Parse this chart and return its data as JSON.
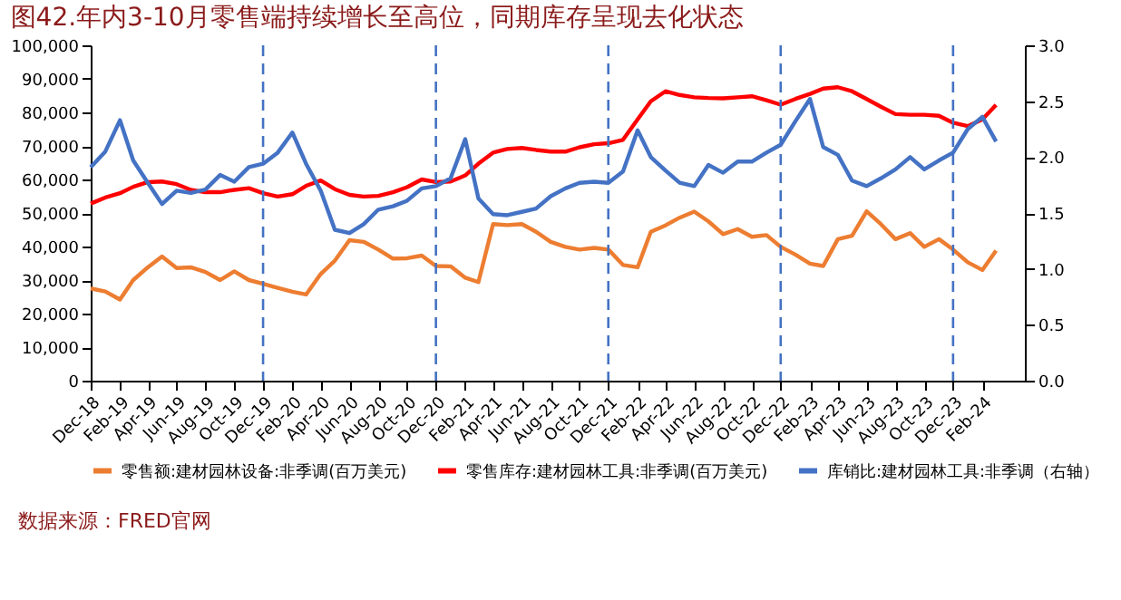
{
  "chart_data": {
    "type": "line",
    "title": "图42.年内3-10月零售端持续增长至高位，同期库存呈现去化状态",
    "annotations": [
      "数据来源：FRED官网"
    ],
    "x": [
      "2018-12",
      "2019-01",
      "2019-02",
      "2019-03",
      "2019-04",
      "2019-05",
      "2019-06",
      "2019-07",
      "2019-08",
      "2019-09",
      "2019-10",
      "2019-11",
      "2019-12",
      "2020-01",
      "2020-02",
      "2020-03",
      "2020-04",
      "2020-05",
      "2020-06",
      "2020-07",
      "2020-08",
      "2020-09",
      "2020-10",
      "2020-11",
      "2020-12",
      "2021-01",
      "2021-02",
      "2021-03",
      "2021-04",
      "2021-05",
      "2021-06",
      "2021-07",
      "2021-08",
      "2021-09",
      "2021-10",
      "2021-11",
      "2021-12",
      "2022-01",
      "2022-02",
      "2022-03",
      "2022-04",
      "2022-05",
      "2022-06",
      "2022-07",
      "2022-08",
      "2022-09",
      "2022-10",
      "2022-11",
      "2022-12",
      "2023-01",
      "2023-02",
      "2023-03",
      "2023-04",
      "2023-05",
      "2023-06",
      "2023-07",
      "2023-08",
      "2023-09",
      "2023-10",
      "2023-11",
      "2023-12",
      "2024-01",
      "2024-02",
      "2024-03"
    ],
    "series": [
      {
        "name": "零售额:建材园林设备:非季调(百万美元)",
        "color": "#ed7d31",
        "values": [
          27500,
          26600,
          24200,
          30000,
          33800,
          37000,
          33600,
          33800,
          32400,
          30000,
          32600,
          30000,
          28900,
          27700,
          26500,
          25700,
          31800,
          35800,
          41900,
          41400,
          39100,
          36400,
          36500,
          37300,
          34200,
          34100,
          30700,
          29400,
          46700,
          46400,
          46700,
          44400,
          41400,
          39900,
          39100,
          39600,
          39100,
          34500,
          33800,
          44400,
          46300,
          48600,
          50400,
          47500,
          43700,
          45200,
          42900,
          43400,
          39900,
          37600,
          34900,
          34200,
          42200,
          43200,
          50500,
          46700,
          42200,
          44000,
          39900,
          42200,
          39100,
          35300,
          33000,
          38800
        ]
      },
      {
        "name": "零售库存:建材园林工具:非季调(百万美元)",
        "color": "#ff0000",
        "values": [
          52800,
          54600,
          55900,
          57800,
          59200,
          59400,
          58600,
          56900,
          56200,
          56200,
          56900,
          57400,
          55900,
          54900,
          55600,
          58100,
          59700,
          57100,
          55400,
          54900,
          55100,
          56200,
          57700,
          60000,
          59200,
          59400,
          61200,
          64700,
          68000,
          69100,
          69400,
          68800,
          68300,
          68300,
          69600,
          70500,
          70800,
          71800,
          77900,
          83300,
          86300,
          85200,
          84500,
          84300,
          84200,
          84500,
          84800,
          83600,
          82300,
          84000,
          85500,
          87100,
          87500,
          86300,
          84000,
          81700,
          79500,
          79300,
          79300,
          79000,
          76900,
          75900,
          77900,
          82200
        ]
      },
      {
        "name": "库销比:建材园林工具:非季调（右轴）",
        "color": "#4472c4",
        "axis": "y2",
        "values": [
          1.91,
          2.05,
          2.33,
          1.97,
          1.77,
          1.58,
          1.7,
          1.68,
          1.71,
          1.84,
          1.78,
          1.91,
          1.94,
          2.04,
          2.22,
          1.94,
          1.7,
          1.35,
          1.32,
          1.4,
          1.53,
          1.56,
          1.61,
          1.72,
          1.74,
          1.81,
          2.16,
          1.63,
          1.49,
          1.48,
          1.51,
          1.54,
          1.65,
          1.72,
          1.77,
          1.78,
          1.77,
          1.87,
          2.24,
          2.0,
          1.88,
          1.77,
          1.74,
          1.93,
          1.86,
          1.96,
          1.96,
          2.04,
          2.11,
          2.32,
          2.52,
          2.09,
          2.02,
          1.79,
          1.74,
          1.81,
          1.89,
          2.0,
          1.89,
          1.97,
          2.04,
          2.25,
          2.36,
          2.14
        ]
      }
    ],
    "xlim": [
      "2018-12",
      "2024-05"
    ],
    "xticks": [
      {
        "value": "2018-12",
        "label": "Dec-18"
      },
      {
        "value": "2019-02",
        "label": "Feb-19"
      },
      {
        "value": "2019-04",
        "label": "Apr-19"
      },
      {
        "value": "2019-06",
        "label": "Jun-19"
      },
      {
        "value": "2019-08",
        "label": "Aug-19"
      },
      {
        "value": "2019-10",
        "label": "Oct-19"
      },
      {
        "value": "2019-12",
        "label": "Dec-19"
      },
      {
        "value": "2020-02",
        "label": "Feb-20"
      },
      {
        "value": "2020-04",
        "label": "Apr-20"
      },
      {
        "value": "2020-06",
        "label": "Jun-20"
      },
      {
        "value": "2020-08",
        "label": "Aug-20"
      },
      {
        "value": "2020-10",
        "label": "Oct-20"
      },
      {
        "value": "2020-12",
        "label": "Dec-20"
      },
      {
        "value": "2021-02",
        "label": "Feb-21"
      },
      {
        "value": "2021-04",
        "label": "Apr-21"
      },
      {
        "value": "2021-06",
        "label": "Jun-21"
      },
      {
        "value": "2021-08",
        "label": "Aug-21"
      },
      {
        "value": "2021-10",
        "label": "Oct-21"
      },
      {
        "value": "2021-12",
        "label": "Dec-21"
      },
      {
        "value": "2022-02",
        "label": "Feb-22"
      },
      {
        "value": "2022-04",
        "label": "Apr-22"
      },
      {
        "value": "2022-06",
        "label": "Jun-22"
      },
      {
        "value": "2022-08",
        "label": "Aug-22"
      },
      {
        "value": "2022-10",
        "label": "Oct-22"
      },
      {
        "value": "2022-12",
        "label": "Dec-22"
      },
      {
        "value": "2023-02",
        "label": "Feb-23"
      },
      {
        "value": "2023-04",
        "label": "Apr-23"
      },
      {
        "value": "2023-06",
        "label": "Jun-23"
      },
      {
        "value": "2023-08",
        "label": "Aug-23"
      },
      {
        "value": "2023-10",
        "label": "Oct-23"
      },
      {
        "value": "2023-12",
        "label": "Dec-23"
      },
      {
        "value": "2024-02",
        "label": "Feb-24"
      }
    ],
    "ylim": [
      0,
      100000
    ],
    "yticks": [
      {
        "value": 0,
        "label": "0"
      },
      {
        "value": 10000,
        "label": "10,000"
      },
      {
        "value": 20000,
        "label": "20,000"
      },
      {
        "value": 30000,
        "label": "30,000"
      },
      {
        "value": 40000,
        "label": "40,000"
      },
      {
        "value": 50000,
        "label": "50,000"
      },
      {
        "value": 60000,
        "label": "60,000"
      },
      {
        "value": 70000,
        "label": "70,000"
      },
      {
        "value": 80000,
        "label": "80,000"
      },
      {
        "value": 90000,
        "label": "90,000"
      },
      {
        "value": 100000,
        "label": "100,000"
      }
    ],
    "y2lim": [
      0,
      3
    ],
    "y2ticks": [
      {
        "value": 0,
        "label": "0.0"
      },
      {
        "value": 0.5,
        "label": "0.5"
      },
      {
        "value": 1,
        "label": "1.0"
      },
      {
        "value": 1.5,
        "label": "1.5"
      },
      {
        "value": 2,
        "label": "2.0"
      },
      {
        "value": 2.5,
        "label": "2.5"
      },
      {
        "value": 3,
        "label": "3.0"
      }
    ],
    "ref_lines": [
      {
        "axis": "x",
        "value": "2019-12",
        "color": "#4472c4",
        "line_style": "dashed"
      },
      {
        "axis": "x",
        "value": "2020-12",
        "color": "#4472c4",
        "line_style": "dashed"
      },
      {
        "axis": "x",
        "value": "2021-12",
        "color": "#4472c4",
        "line_style": "dashed"
      },
      {
        "axis": "x",
        "value": "2022-12",
        "color": "#4472c4",
        "line_style": "dashed"
      },
      {
        "axis": "x",
        "value": "2023-12",
        "color": "#4472c4",
        "line_style": "dashed"
      }
    ],
    "grid": false,
    "legend": "bottom",
    "marker": "none",
    "line_style": "solid"
  }
}
